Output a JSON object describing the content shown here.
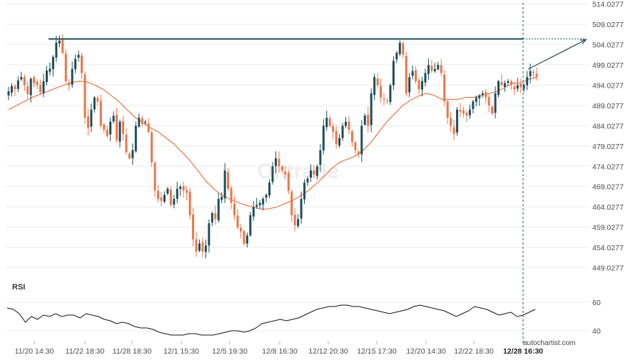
{
  "chart_data": {
    "type": "candlestick",
    "title": "",
    "price_axis": {
      "ticks": [
        "514.0277",
        "509.0277",
        "504.0277",
        "499.0277",
        "494.0277",
        "489.0277",
        "484.0277",
        "479.0277",
        "474.0277",
        "469.0277",
        "464.0277",
        "459.0277",
        "454.0277",
        "449.0277"
      ],
      "ylim": [
        446.5,
        515.0
      ]
    },
    "x_ticks": [
      "11/20 14:30",
      "11/22 18:30",
      "11/28 18:30",
      "12/1 15:30",
      "12/5 19:30",
      "12/8 16:30",
      "12/12 20:30",
      "12/15 17:30",
      "12/20 14:30",
      "12/22 18:30",
      "12/28 16:30"
    ],
    "current_x_tick_index": 10,
    "close_series": [
      492.5,
      493.8,
      493.0,
      495.2,
      496.0,
      494.0,
      491.8,
      495.6,
      494.5,
      494.0,
      492.3,
      495.0,
      497.6,
      498.1,
      501.0,
      504.5,
      505.0,
      502.0,
      495.0,
      494.0,
      498.0,
      500.5,
      501.5,
      497.0,
      486.0,
      483.5,
      488.0,
      491.0,
      490.0,
      484.0,
      483.0,
      481.5,
      485.0,
      486.5,
      480.5,
      485.0,
      482.0,
      477.5,
      476.0,
      478.0,
      484.0,
      486.0,
      484.5,
      485.0,
      482.5,
      475.0,
      468.0,
      466.0,
      465.5,
      467.0,
      468.5,
      464.5,
      466.0,
      468.5,
      469.0,
      468.0,
      467.5,
      462.0,
      456.0,
      453.0,
      455.0,
      453.0,
      454.5,
      460.0,
      462.5,
      461.0,
      466.0,
      466.5,
      473.0,
      468.5,
      465.0,
      462.0,
      459.0,
      458.0,
      455.0,
      457.0,
      462.0,
      464.0,
      464.5,
      465.0,
      466.0,
      467.0,
      470.0,
      474.0,
      476.0,
      474.0,
      473.0,
      472.0,
      468.0,
      462.0,
      459.5,
      461.0,
      466.0,
      470.0,
      471.0,
      473.0,
      472.0,
      474.0,
      478.0,
      484.0,
      486.0,
      484.0,
      482.5,
      479.5,
      481.0,
      484.0,
      485.0,
      483.0,
      480.0,
      478.0,
      477.0,
      484.0,
      486.5,
      484.0,
      492.0,
      496.0,
      494.0,
      491.0,
      490.5,
      490.0,
      494.0,
      500.0,
      502.0,
      504.5,
      501.5,
      492.0,
      496.0,
      497.5,
      495.0,
      493.0,
      495.0,
      497.0,
      499.0,
      497.5,
      498.0,
      499.0,
      497.0,
      490.0,
      486.0,
      484.0,
      482.0,
      488.0,
      487.5,
      487.0,
      486.5,
      488.0,
      490.0,
      491.0,
      491.5,
      492.0,
      491.0,
      489.0,
      487.0,
      492.0,
      495.0,
      494.0,
      494.5,
      495.0,
      494.0,
      493.0,
      494.0,
      493.5,
      494.0,
      496.0,
      497.5,
      497.0,
      496.0
    ],
    "moving_average": {
      "color": "#e8774a",
      "values": [
        488.0,
        489.0,
        490.0,
        491.0,
        491.8,
        492.5,
        493.3,
        494.0,
        494.7,
        495.0,
        494.8,
        494.0,
        493.0,
        491.5,
        490.0,
        488.0,
        486.2,
        484.8,
        483.5,
        482.5,
        481.0,
        479.5,
        477.5,
        475.5,
        473.0,
        470.5,
        468.5,
        467.0,
        466.0,
        465.2,
        464.5,
        464.0,
        463.5,
        463.5,
        464.0,
        464.8,
        465.6,
        466.7,
        468.0,
        469.7,
        471.5,
        473.5,
        475.0,
        475.8,
        476.5,
        478.0,
        480.0,
        482.5,
        485.0,
        487.0,
        489.0,
        490.3,
        491.3,
        492.0,
        491.5,
        490.5,
        490.5,
        490.5,
        491.0,
        491.0,
        491.5,
        492.0,
        492.5,
        493.5,
        494.5,
        494.5,
        495.5,
        495.9
      ]
    },
    "rsi": {
      "label": "RSI",
      "ticks": [
        "60",
        "40"
      ],
      "ylim": [
        33,
        67
      ],
      "values": [
        56,
        55,
        52,
        46,
        50,
        48,
        51,
        50,
        52,
        50,
        51,
        51,
        49,
        52,
        51,
        50,
        48,
        47,
        45,
        46,
        45,
        43,
        42,
        42,
        41,
        39,
        38,
        37,
        37,
        37,
        38,
        38,
        37,
        37,
        37,
        38,
        39,
        40,
        40,
        39,
        40,
        42,
        45,
        46,
        47,
        48,
        47,
        48,
        49,
        51,
        53,
        55,
        56,
        57,
        57,
        58,
        58,
        57,
        57,
        56,
        55,
        54,
        53,
        52,
        53,
        54,
        55,
        57,
        58,
        57,
        56,
        55,
        54,
        52,
        50,
        52,
        54,
        57,
        56,
        55,
        53,
        51,
        52,
        53,
        50,
        51,
        53,
        55
      ]
    },
    "resistance_level": 505.4,
    "projection_label": "",
    "colors": {
      "up": "#1f4e5a",
      "down": "#e8774a",
      "moving_average": "#e8774a",
      "resistance": "#1f4e5a",
      "rsi": "#111111"
    }
  },
  "branding": {
    "site": "autochartist.com",
    "watermark": "Ontrade"
  }
}
